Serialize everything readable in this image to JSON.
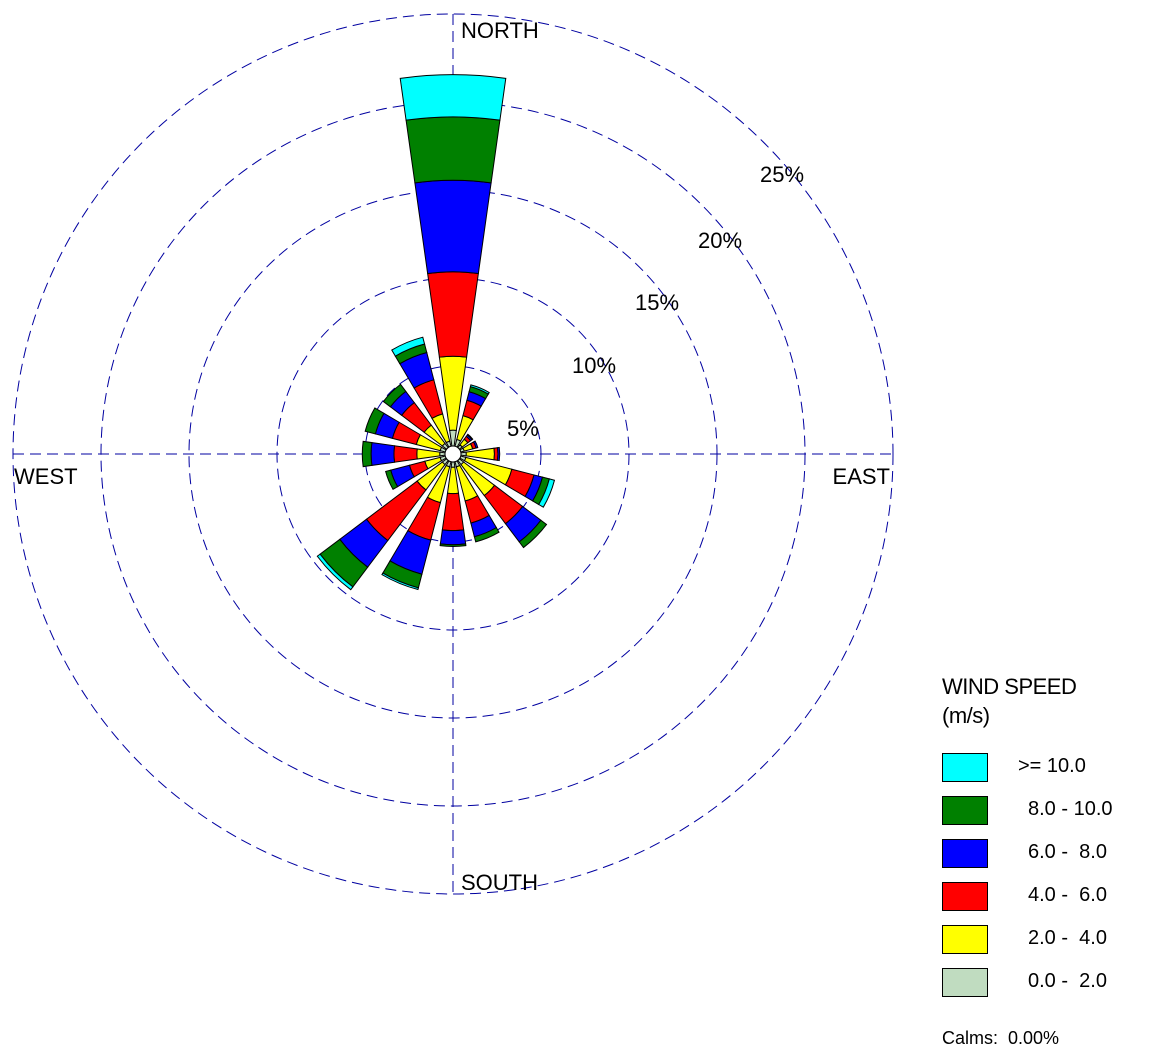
{
  "chart_data": {
    "type": "wind-rose",
    "title": "",
    "directions": [
      "N",
      "NNE",
      "NE",
      "ENE",
      "E",
      "ESE",
      "SE",
      "SSE",
      "S",
      "SSW",
      "SW",
      "WSW",
      "W",
      "WNW",
      "NW",
      "NNW"
    ],
    "compass_labels": {
      "north": "NORTH",
      "east": "EAST",
      "south": "SOUTH",
      "west": "WEST"
    },
    "rings": [
      {
        "value": 5,
        "label": "5%"
      },
      {
        "value": 10,
        "label": "10%"
      },
      {
        "value": 15,
        "label": "15%"
      },
      {
        "value": 20,
        "label": "20%"
      },
      {
        "value": 25,
        "label": "25%"
      }
    ],
    "radial_max": 25,
    "speed_bins": [
      {
        "label": "0.0 -  2.0",
        "color": "#c0dcc0"
      },
      {
        "label": "2.0 -  4.0",
        "color": "#ffff00"
      },
      {
        "label": "4.0 -  6.0",
        "color": "#ff0000"
      },
      {
        "label": "6.0 -  8.0",
        "color": "#0000ff"
      },
      {
        "label": "8.0 - 10.0",
        "color": "#008000"
      },
      {
        "label": ">= 10.0",
        "color": "#00ffff"
      }
    ],
    "frequencies_percent": [
      [
        0.9,
        4.2,
        4.8,
        5.2,
        3.6,
        2.4
      ],
      [
        0.4,
        1.4,
        0.9,
        0.5,
        0.3,
        0.1
      ],
      [
        0.2,
        0.4,
        0.2,
        0.1,
        0.05,
        0.0
      ],
      [
        0.2,
        0.5,
        0.2,
        0.1,
        0.0,
        0.0
      ],
      [
        0.3,
        1.6,
        0.2,
        0.1,
        0.0,
        0.0
      ],
      [
        0.3,
        2.7,
        1.3,
        0.5,
        0.4,
        0.3
      ],
      [
        0.3,
        2.2,
        2.0,
        1.3,
        0.4,
        0.0
      ],
      [
        0.3,
        2.0,
        1.3,
        0.8,
        0.3,
        0.0
      ],
      [
        0.3,
        1.5,
        2.1,
        0.8,
        0.1,
        0.0
      ],
      [
        0.3,
        2.1,
        2.2,
        2.0,
        0.8,
        0.1
      ],
      [
        0.3,
        1.8,
        3.6,
        1.9,
        1.4,
        0.2
      ],
      [
        0.3,
        0.9,
        0.9,
        1.1,
        0.3,
        0.0
      ],
      [
        0.3,
        1.3,
        1.3,
        1.3,
        0.5,
        0.0
      ],
      [
        0.3,
        1.4,
        1.4,
        1.0,
        0.6,
        0.0
      ],
      [
        0.3,
        1.3,
        1.6,
        0.8,
        0.5,
        0.0
      ],
      [
        0.3,
        1.6,
        2.0,
        1.6,
        0.5,
        0.4
      ]
    ],
    "legend": {
      "title_line1": "WIND SPEED",
      "title_line2": "(m/s)",
      "placement": "bottom-right"
    },
    "calms": "Calms:  0.00%",
    "grid": true
  }
}
